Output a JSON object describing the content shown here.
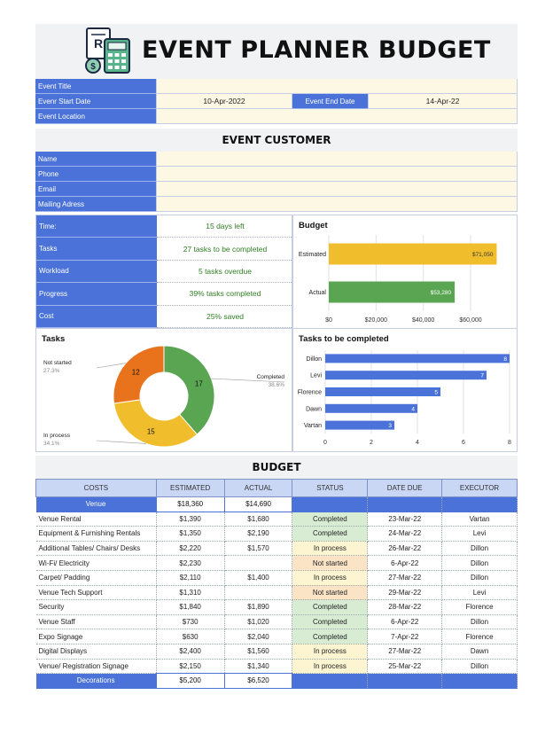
{
  "title": "EVENT PLANNER BUDGET",
  "event": {
    "labels": {
      "title": "Event Title",
      "start": "Evenr Start Date",
      "end": "Event End Date",
      "location": "Event Location"
    },
    "values": {
      "title": "",
      "start": "10-Apr-2022",
      "end": "14-Apr-22",
      "location": ""
    }
  },
  "customer": {
    "heading": "EVENT CUSTOMER",
    "labels": [
      "Name",
      "Phone",
      "Email",
      "Mailing Adress"
    ]
  },
  "status": [
    {
      "label": "Time:",
      "value": "15 days left"
    },
    {
      "label": "Tasks",
      "value": "27 tasks to be completed"
    },
    {
      "label": "Workload",
      "value": "5 tasks overdue"
    },
    {
      "label": "Progress",
      "value": "39% tasks completed"
    },
    {
      "label": "Cost",
      "value": "25% saved"
    }
  ],
  "chart_data": [
    {
      "type": "bar",
      "orientation": "horizontal",
      "title": "Budget",
      "categories": [
        "Estimated",
        "Actual"
      ],
      "values": [
        71050,
        53280
      ],
      "data_labels": [
        "$71,050",
        "$53,280"
      ],
      "colors": [
        "#f0be2c",
        "#5aa552"
      ],
      "xlim": [
        0,
        75000
      ],
      "xticks": [
        0,
        20000,
        40000,
        60000
      ],
      "xtick_labels": [
        "$0",
        "$20,000",
        "$40,000",
        "$60,000"
      ],
      "grid": true
    },
    {
      "type": "pie",
      "donut": true,
      "title": "Tasks",
      "slices": [
        {
          "label": "Completed",
          "value": 17,
          "percent": "38.6%",
          "color": "#5aa552"
        },
        {
          "label": "In process",
          "value": 15,
          "percent": "34.1%",
          "color": "#f0be2c"
        },
        {
          "label": "Not started",
          "value": 12,
          "percent": "27.3%",
          "color": "#e8731c"
        }
      ]
    },
    {
      "type": "bar",
      "orientation": "horizontal",
      "title": "Tasks to be completed",
      "categories": [
        "Dillon",
        "Levi",
        "Florence",
        "Dawn",
        "Vartan"
      ],
      "values": [
        8,
        7,
        5,
        4,
        3
      ],
      "color": "#4a72d8",
      "xlim": [
        0,
        8
      ],
      "xticks": [
        0,
        2,
        4,
        6,
        8
      ],
      "grid": true
    }
  ],
  "budget": {
    "heading": "BUDGET",
    "columns": [
      "COSTS",
      "ESTIMATED",
      "ACTUAL",
      "STATUS",
      "DATE DUE",
      "EXECUTOR"
    ],
    "group": {
      "name": "Venue",
      "estimated": "$18,360",
      "actual": "$14,690"
    },
    "rows": [
      {
        "cost": "Venue Rental",
        "estimated": "$1,390",
        "actual": "$1,680",
        "status": "Completed",
        "due": "23-Mar-22",
        "executor": "Vartan"
      },
      {
        "cost": "Equipment & Furnishing Rentals",
        "estimated": "$1,350",
        "actual": "$2,190",
        "status": "Completed",
        "due": "24-Mar-22",
        "executor": "Levi"
      },
      {
        "cost": "Additional Tables/ Chairs/ Desks",
        "estimated": "$2,220",
        "actual": "$1,570",
        "status": "In process",
        "due": "26-Mar-22",
        "executor": "Dillon"
      },
      {
        "cost": "Wi-Fi/ Electricity",
        "estimated": "$2,230",
        "actual": "",
        "status": "Not started",
        "due": "6-Apr-22",
        "executor": "Dillon"
      },
      {
        "cost": "Carpet/ Padding",
        "estimated": "$2,110",
        "actual": "$1,400",
        "status": "In process",
        "due": "27-Mar-22",
        "executor": "Dillon"
      },
      {
        "cost": "Venue Tech Support",
        "estimated": "$1,310",
        "actual": "",
        "status": "Not started",
        "due": "29-Mar-22",
        "executor": "Levi"
      },
      {
        "cost": "Security",
        "estimated": "$1,840",
        "actual": "$1,890",
        "status": "Completed",
        "due": "28-Mar-22",
        "executor": "Florence"
      },
      {
        "cost": "Venue Staff",
        "estimated": "$730",
        "actual": "$1,020",
        "status": "Completed",
        "due": "6-Apr-22",
        "executor": "Dillon"
      },
      {
        "cost": "Expo Signage",
        "estimated": "$630",
        "actual": "$2,040",
        "status": "Completed",
        "due": "7-Apr-22",
        "executor": "Florence"
      },
      {
        "cost": "Digital Displays",
        "estimated": "$2,400",
        "actual": "$1,560",
        "status": "In process",
        "due": "27-Mar-22",
        "executor": "Dawn"
      },
      {
        "cost": "Venue/ Registration Signage",
        "estimated": "$2,150",
        "actual": "$1,340",
        "status": "In process",
        "due": "25-Mar-22",
        "executor": "Dillon"
      }
    ],
    "footer": {
      "name": "Decorations",
      "estimated": "$5,200",
      "actual": "$6,520"
    }
  },
  "icons": {
    "logo": "calculator-receipt-icon"
  },
  "colors": {
    "accent": "#4a72d8",
    "field": "#fdf8e4",
    "green": "#5aa552",
    "yellow": "#f0be2c",
    "orange": "#e8731c"
  }
}
